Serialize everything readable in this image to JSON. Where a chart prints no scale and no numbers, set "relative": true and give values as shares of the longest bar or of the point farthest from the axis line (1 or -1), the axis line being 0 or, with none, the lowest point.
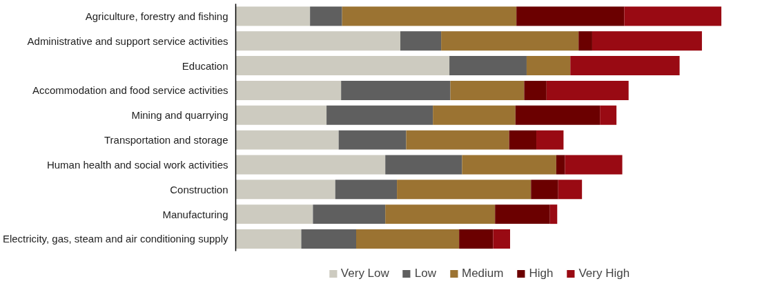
{
  "chart_data": {
    "type": "bar",
    "orientation": "horizontal",
    "stacked": true,
    "relative": true,
    "legend": "bottom",
    "grid": false,
    "categories": [
      "Agriculture, forestry and fishing",
      "Administrative and support service activities",
      "Education",
      "Accommodation and food service activities",
      "Mining and quarrying",
      "Transportation and storage",
      "Human health and social work activities",
      "Construction",
      "Manufacturing",
      "Electricity, gas, steam and air conditioning supply"
    ],
    "series": [
      {
        "name": "Very Low",
        "color": "#cdcbc0",
        "values": [
          0.153,
          0.339,
          0.44,
          0.217,
          0.187,
          0.212,
          0.308,
          0.205,
          0.159,
          0.135
        ]
      },
      {
        "name": "Low",
        "color": "#5f5f5f",
        "values": [
          0.066,
          0.084,
          0.159,
          0.225,
          0.219,
          0.139,
          0.158,
          0.127,
          0.149,
          0.113
        ]
      },
      {
        "name": "Medium",
        "color": "#9b7332",
        "values": [
          0.359,
          0.283,
          0.09,
          0.152,
          0.17,
          0.212,
          0.194,
          0.276,
          0.226,
          0.212
        ]
      },
      {
        "name": "High",
        "color": "#6b0000",
        "values": [
          0.222,
          0.028,
          0,
          0.046,
          0.174,
          0.056,
          0.018,
          0.056,
          0.113,
          0.07
        ]
      },
      {
        "name": "Very High",
        "color": "#990a13",
        "values": [
          0.2,
          0.226,
          0.225,
          0.169,
          0.034,
          0.056,
          0.118,
          0.049,
          0.015,
          0.035
        ]
      }
    ]
  }
}
